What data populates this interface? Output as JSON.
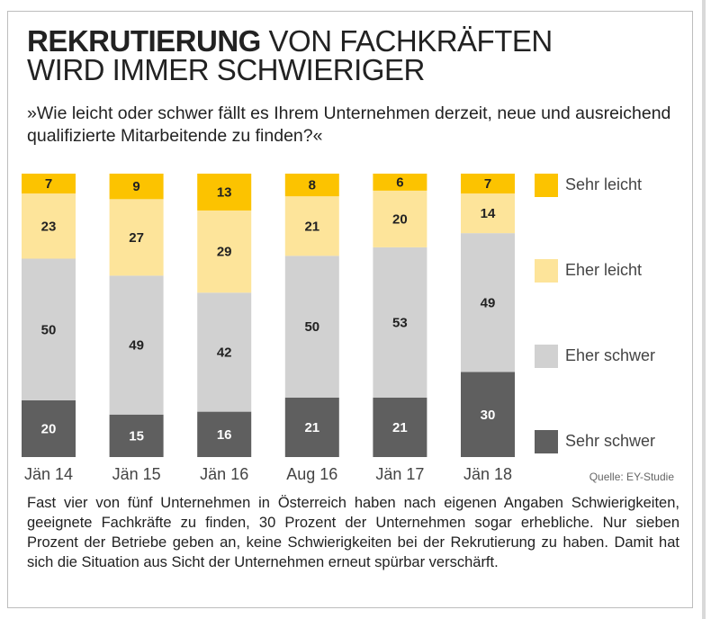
{
  "header": {
    "title_bold": "REKRUTIERUNG",
    "title_rest": " VON FACHKRÄFTEN",
    "title_line2": "WIRD IMMER SCHWIERIGER",
    "question": "»Wie leicht oder schwer fällt es Ihrem Unternehmen derzeit, neue und ausrei­chend qualifizierte Mitarbeitende zu finden?«"
  },
  "source": "Quelle: EY-Studie",
  "body_text": "Fast vier von fünf Unternehmen in Österreich haben nach eigenen Angaben Schwierigkeiten, geeignete Fachkräfte zu finden, 30 Prozent der Unternehmen sogar erhebliche. Nur sieben Prozent der Betriebe geben an, keine Schwierigkeiten bei der Rekrutierung zu haben. Damit hat sich die Situation aus Sicht der Unternehmen erneut spürbar verschärft.",
  "chart_data": {
    "type": "bar",
    "stacked": true,
    "categories": [
      "Jän 14",
      "Jän 15",
      "Jän 16",
      "Aug 16",
      "Jän 17",
      "Jän 18"
    ],
    "series": [
      {
        "name": "Sehr schwer",
        "color": "#5f5f5f",
        "label_color": "#ffffff",
        "values": [
          20,
          15,
          16,
          21,
          21,
          30
        ]
      },
      {
        "name": "Eher schwer",
        "color": "#d1d1d1",
        "label_color": "#222222",
        "values": [
          50,
          49,
          42,
          50,
          53,
          49
        ]
      },
      {
        "name": "Eher leicht",
        "color": "#fde49a",
        "label_color": "#222222",
        "values": [
          23,
          27,
          29,
          21,
          20,
          14
        ]
      },
      {
        "name": "Sehr leicht",
        "color": "#fcc300",
        "label_color": "#222222",
        "values": [
          7,
          9,
          13,
          8,
          6,
          7
        ]
      }
    ],
    "legend": [
      "Sehr leicht",
      "Eher leicht",
      "Eher schwer",
      "Sehr schwer"
    ],
    "legend_placement": "right",
    "grid": false
  }
}
